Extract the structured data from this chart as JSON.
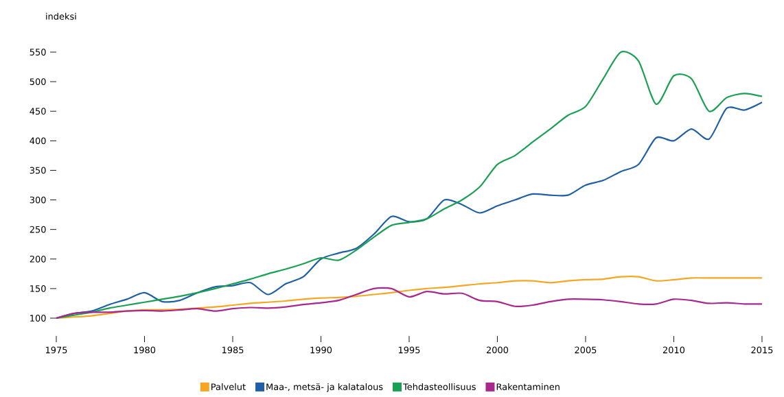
{
  "chart_data": {
    "type": "line",
    "ylabel": "indeksi",
    "x": [
      1975,
      1976,
      1977,
      1978,
      1979,
      1980,
      1981,
      1982,
      1983,
      1984,
      1985,
      1986,
      1987,
      1988,
      1989,
      1990,
      1991,
      1992,
      1993,
      1994,
      1995,
      1996,
      1997,
      1998,
      1999,
      2000,
      2001,
      2002,
      2003,
      2004,
      2005,
      2006,
      2007,
      2008,
      2009,
      2010,
      2011,
      2012,
      2013,
      2014,
      2015
    ],
    "series": [
      {
        "name": "Palvelut",
        "color": "#f5a623",
        "values": [
          100,
          102,
          104,
          108,
          112,
          114,
          114,
          115,
          117,
          119,
          122,
          125,
          127,
          129,
          132,
          134,
          135,
          137,
          140,
          143,
          147,
          150,
          152,
          155,
          158,
          160,
          163,
          163,
          160,
          163,
          165,
          166,
          170,
          170,
          163,
          165,
          168,
          168,
          168,
          168,
          168
        ]
      },
      {
        "name": "Maa-, metsä- ja kalatalous",
        "color": "#1f5fa8",
        "values": [
          100,
          108,
          112,
          123,
          132,
          143,
          128,
          130,
          143,
          153,
          155,
          160,
          140,
          158,
          170,
          200,
          210,
          218,
          242,
          272,
          263,
          268,
          300,
          292,
          278,
          290,
          300,
          310,
          308,
          308,
          325,
          333,
          348,
          360,
          405,
          400,
          420,
          403,
          455,
          452,
          465
        ]
      },
      {
        "name": "Tehdasteollisuus",
        "color": "#1aa052",
        "values": [
          100,
          105,
          110,
          117,
          122,
          127,
          132,
          137,
          143,
          150,
          158,
          166,
          175,
          183,
          192,
          202,
          198,
          215,
          237,
          257,
          262,
          268,
          285,
          300,
          322,
          360,
          375,
          398,
          420,
          443,
          458,
          505,
          550,
          535,
          462,
          510,
          505,
          450,
          473,
          480,
          475
        ]
      },
      {
        "name": "Rakentaminen",
        "color": "#a8288e",
        "values": [
          100,
          108,
          110,
          110,
          112,
          113,
          112,
          114,
          116,
          112,
          116,
          118,
          117,
          119,
          123,
          126,
          130,
          140,
          150,
          150,
          136,
          145,
          141,
          142,
          130,
          128,
          120,
          122,
          128,
          132,
          132,
          131,
          128,
          124,
          124,
          132,
          130,
          125,
          126,
          124,
          124
        ]
      }
    ],
    "xlim": [
      1975,
      2015
    ],
    "ylim": [
      100,
      550
    ],
    "xticks": [
      1975,
      1980,
      1985,
      1990,
      1995,
      2000,
      2005,
      2010,
      2015
    ],
    "yticks": [
      100,
      150,
      200,
      250,
      300,
      350,
      400,
      450,
      500,
      550
    ],
    "grid": false,
    "legend": "bottom",
    "marker": "none",
    "line_style": "solid"
  }
}
